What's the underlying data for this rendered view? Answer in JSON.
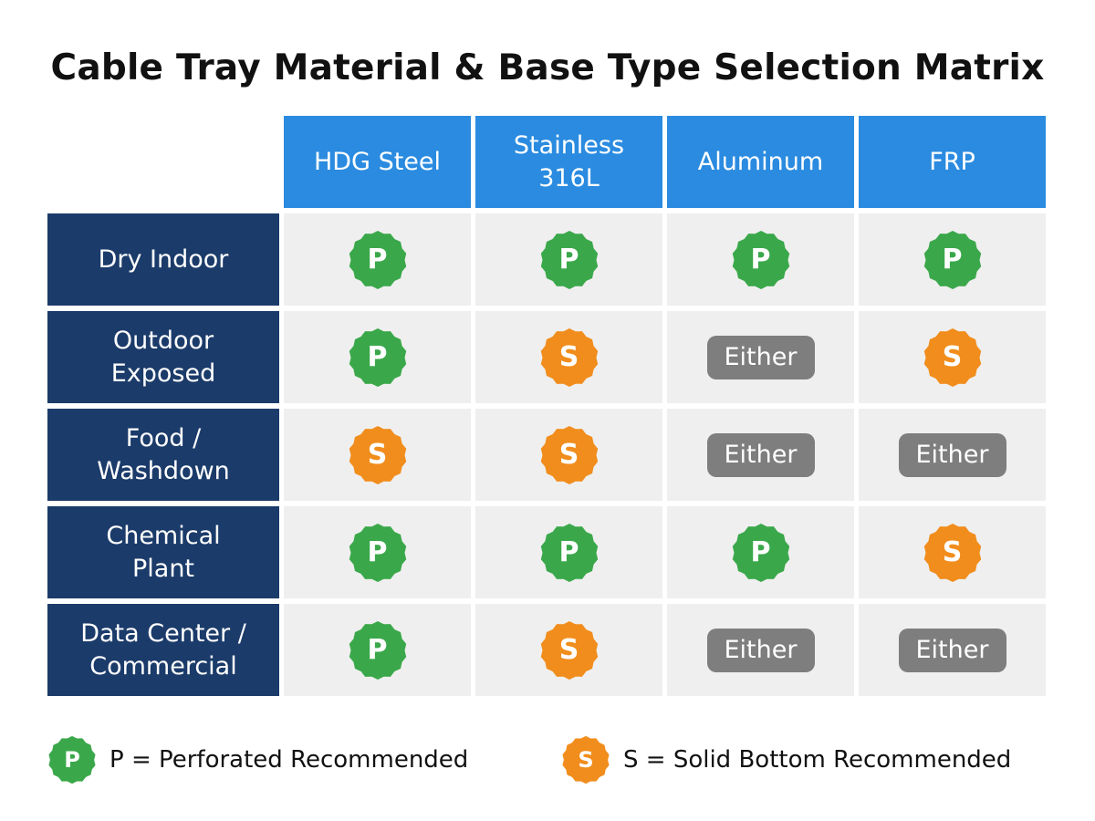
{
  "title": "Cable Tray Material & Base Type Selection Matrix",
  "colors": {
    "header_blue": "#2a8be0",
    "row_navy": "#1b3b6a",
    "perforated_green": "#3aa84a",
    "solid_orange": "#f18d1c",
    "either_gray": "#7e7e7e",
    "cell_bg": "#efefef"
  },
  "columns": [
    "HDG Steel",
    "Stainless\n316L",
    "Aluminum",
    "FRP"
  ],
  "rows": [
    {
      "label": "Dry Indoor",
      "values": [
        "P",
        "P",
        "P",
        "P"
      ]
    },
    {
      "label": "Outdoor\nExposed",
      "values": [
        "P",
        "S",
        "Either",
        "S"
      ]
    },
    {
      "label": "Food /\nWashdown",
      "values": [
        "S",
        "S",
        "Either",
        "Either"
      ]
    },
    {
      "label": "Chemical\nPlant",
      "values": [
        "P",
        "P",
        "P",
        "S"
      ]
    },
    {
      "label": "Data Center /\nCommercial",
      "values": [
        "P",
        "S",
        "Either",
        "Either"
      ]
    }
  ],
  "legend": [
    {
      "symbol": "P",
      "text": "P = Perforated Recommended",
      "icon": "perforated-badge-icon"
    },
    {
      "symbol": "S",
      "text": "S = Solid Bottom Recommended",
      "icon": "solid-bottom-badge-icon"
    }
  ]
}
